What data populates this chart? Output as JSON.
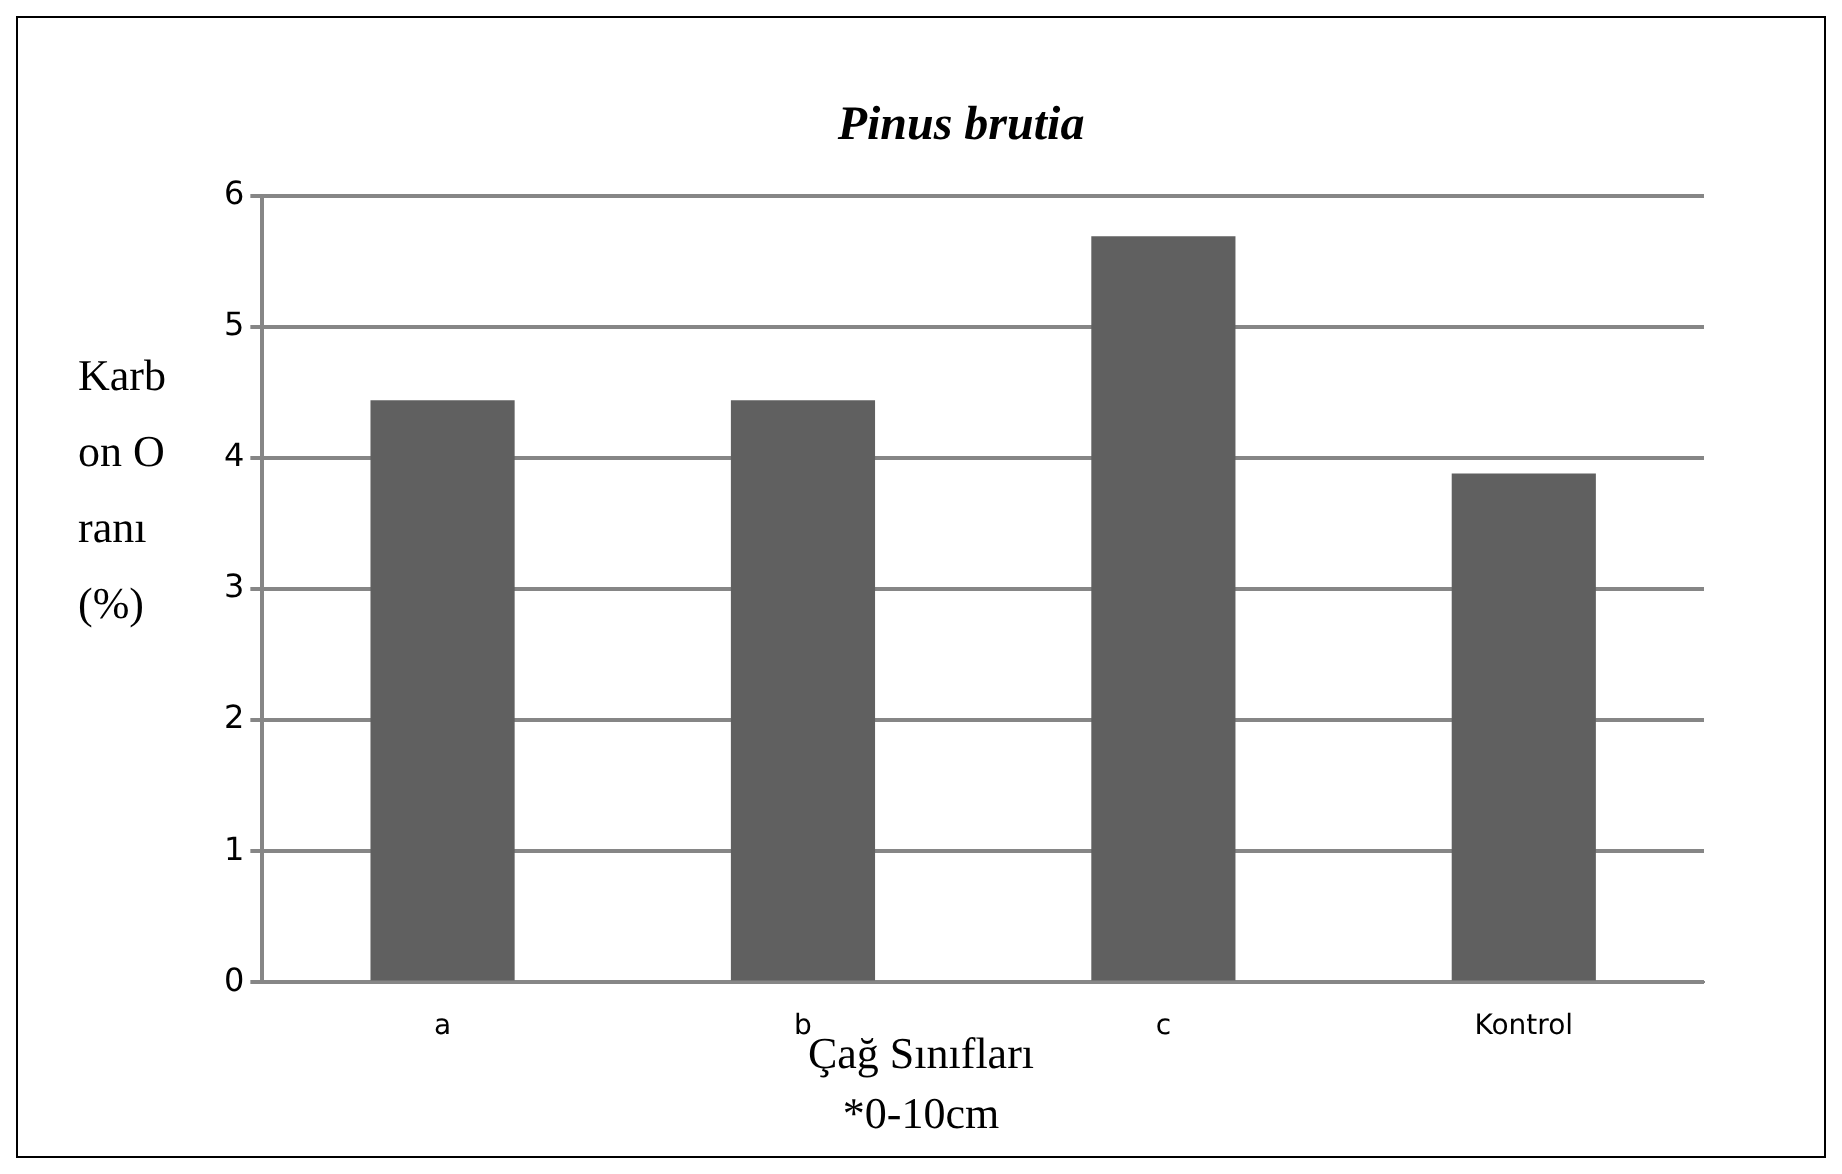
{
  "chart_data": {
    "type": "bar",
    "title": "Pinus brutia",
    "ylabel": "Karbon Oranı (%)",
    "xlabel": "Çağ Sınıfları",
    "annotations": [
      "*0-10cm"
    ],
    "categories": [
      "a",
      "b",
      "c",
      "Kontrol"
    ],
    "values": [
      4.44,
      4.44,
      5.69,
      3.88
    ],
    "color": "#606060",
    "ylim": [
      0,
      6
    ],
    "yticks": [
      0,
      1,
      2,
      3,
      4,
      5,
      6
    ],
    "grid": "y",
    "legend": false
  }
}
